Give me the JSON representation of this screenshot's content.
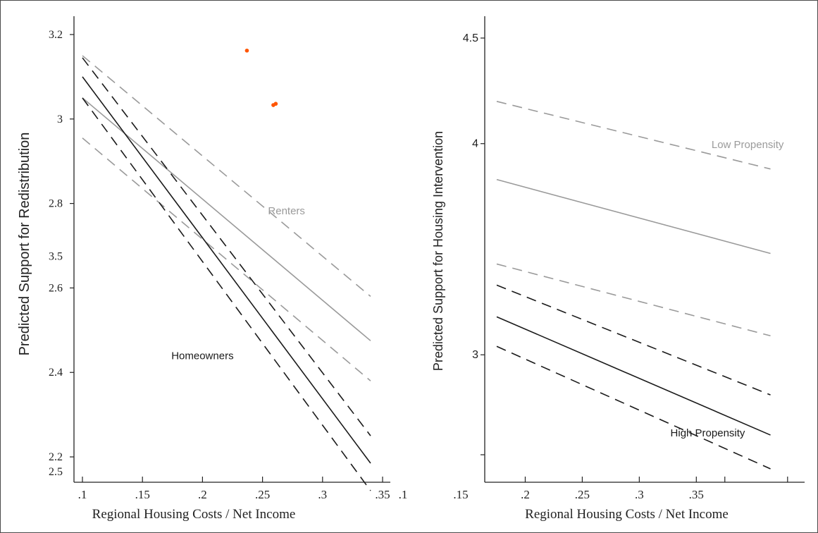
{
  "chart_data": [
    {
      "type": "line",
      "xlabel": "Regional Housing Costs / Net Income",
      "ylabel": "Predicted Support for Redistribution",
      "xlim": [
        0.1,
        0.35
      ],
      "ylim": [
        2.15,
        3.22
      ],
      "x_ticks": [
        ".1",
        ".15",
        ".2",
        ".25",
        ".3",
        ".35"
      ],
      "extra_x_tick_label": ".1",
      "y_ticks": [
        {
          "value": 3.2,
          "label": "3.2"
        },
        {
          "value": 3.0,
          "label": "3"
        },
        {
          "value": 2.8,
          "label": "2.8"
        },
        {
          "value": 2.6,
          "label": "2.6"
        },
        {
          "value": 2.4,
          "label": "2.4"
        },
        {
          "value": 2.2,
          "label": "2.2"
        }
      ],
      "stray_y_labels": [
        {
          "near_value": 2.675,
          "label": "3.5"
        },
        {
          "near_value": 2.165,
          "label": "2.5"
        }
      ],
      "annotations": [
        {
          "text": "Renters",
          "x": 0.27,
          "y": 2.783,
          "color": "#9a9a9a"
        },
        {
          "text": "Homeowners",
          "x": 0.2,
          "y": 2.44,
          "color": "#1a1a1a"
        }
      ],
      "markers": [
        {
          "x": 0.237,
          "y": 3.162,
          "color": "#ff5500"
        },
        {
          "x": 0.259,
          "y": 3.033,
          "color": "#ff5500"
        },
        {
          "x": 0.261,
          "y": 3.036,
          "color": "#ff5500"
        }
      ],
      "series": [
        {
          "color": "#9a9a9a",
          "dash": "none",
          "x": [
            0.1,
            0.34
          ],
          "y": [
            3.05,
            2.475
          ]
        },
        {
          "color": "#9a9a9a",
          "dash": "dash",
          "x": [
            0.1,
            0.34
          ],
          "y": [
            3.15,
            2.58
          ]
        },
        {
          "color": "#9a9a9a",
          "dash": "dash",
          "x": [
            0.1,
            0.34
          ],
          "y": [
            2.955,
            2.38
          ]
        },
        {
          "color": "#1a1a1a",
          "dash": "none",
          "x": [
            0.1,
            0.34
          ],
          "y": [
            3.1,
            2.185
          ]
        },
        {
          "color": "#1a1a1a",
          "dash": "dash",
          "x": [
            0.1,
            0.34
          ],
          "y": [
            3.145,
            2.25
          ]
        },
        {
          "color": "#1a1a1a",
          "dash": "dash",
          "x": [
            0.1,
            0.34
          ],
          "y": [
            3.05,
            2.12
          ]
        }
      ]
    },
    {
      "type": "line",
      "xlabel": "Regional Housing Costs / Net Income",
      "ylabel": "Predicted Support for Housing Intervention",
      "xlim": [
        0.175,
        0.44
      ],
      "ylim": [
        2.5,
        4.55
      ],
      "x_ticks": [
        ".2",
        ".25",
        ".3",
        ".35"
      ],
      "extra_x_tick_label": ".15",
      "y_ticks": [
        {
          "value": 4.5,
          "label": "4.5"
        },
        {
          "value": 4.0,
          "label": "4"
        },
        {
          "value": 3.0,
          "label": "3"
        }
      ],
      "annotations": [
        {
          "text": "Low Propensity",
          "x": 0.395,
          "y": 3.995,
          "color": "#9a9a9a"
        },
        {
          "text": "High Propensity",
          "x": 0.36,
          "y": 2.63,
          "color": "#1a1a1a"
        }
      ],
      "series": [
        {
          "color": "#9a9a9a",
          "dash": "none",
          "x": [
            0.175,
            0.415
          ],
          "y": [
            3.83,
            3.48
          ]
        },
        {
          "color": "#9a9a9a",
          "dash": "dash",
          "x": [
            0.175,
            0.415
          ],
          "y": [
            4.2,
            3.88
          ]
        },
        {
          "color": "#9a9a9a",
          "dash": "dash",
          "x": [
            0.175,
            0.415
          ],
          "y": [
            3.43,
            3.09
          ]
        },
        {
          "color": "#1a1a1a",
          "dash": "none",
          "x": [
            0.175,
            0.415
          ],
          "y": [
            3.18,
            2.62
          ]
        },
        {
          "color": "#1a1a1a",
          "dash": "dash",
          "x": [
            0.175,
            0.415
          ],
          "y": [
            3.33,
            2.81
          ]
        },
        {
          "color": "#1a1a1a",
          "dash": "dash",
          "x": [
            0.175,
            0.415
          ],
          "y": [
            3.04,
            2.46
          ]
        }
      ]
    }
  ]
}
